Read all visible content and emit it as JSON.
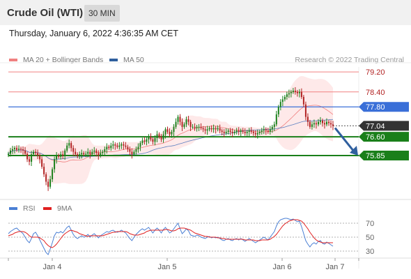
{
  "header": {
    "title": "Crude Oil (WTI)",
    "timeframe": "30 MIN"
  },
  "datetime": "Thursday, January 6, 2022 4:36:35 AM CET",
  "legend": {
    "ma20": {
      "label": "MA 20 + Bollinger Bands",
      "color": "#f08080"
    },
    "ma50": {
      "label": "MA 50",
      "color": "#2f5f9e"
    },
    "credit": "Research © 2022 Trading Central",
    "rsi": {
      "label": "RSI",
      "color": "#4a7fd4"
    },
    "ma9": {
      "label": "9MA",
      "color": "#e02020"
    }
  },
  "colors": {
    "up": "#1a7f1a",
    "down": "#b22222",
    "support": "#1a7f1a",
    "resistance": "#f08080",
    "pivot": "#3a6fd8",
    "arrow": "#2f5f9e",
    "last": "#333333"
  },
  "chart_data": {
    "type": "candlestick",
    "symbol": "Crude Oil (WTI)",
    "interval": "30 MIN",
    "ylim": [
      74.2,
      79.4
    ],
    "price_levels": [
      {
        "label": "79.20",
        "value": 79.2,
        "kind": "resistance"
      },
      {
        "label": "78.40",
        "value": 78.4,
        "kind": "resistance"
      },
      {
        "label": "77.80",
        "value": 77.8,
        "kind": "pivot"
      },
      {
        "label": "77.04",
        "value": 77.04,
        "kind": "last"
      },
      {
        "label": "76.60",
        "value": 76.6,
        "kind": "support"
      },
      {
        "label": "75.85",
        "value": 75.85,
        "kind": "support"
      }
    ],
    "x_ticks": [
      "Jan 4",
      "Jan 5",
      "Jan 6",
      "Jan 7"
    ],
    "closes": [
      75.92,
      76.05,
      76.1,
      76.15,
      76.08,
      76.12,
      76.1,
      76.05,
      75.92,
      75.7,
      75.6,
      75.9,
      76.0,
      75.95,
      75.85,
      75.7,
      75.4,
      75.1,
      74.8,
      74.6,
      74.9,
      75.3,
      75.7,
      75.85,
      75.8,
      75.9,
      75.85,
      76.05,
      76.25,
      76.35,
      76.15,
      76.0,
      75.9,
      75.85,
      75.9,
      75.95,
      75.9,
      75.92,
      76.0,
      75.9,
      76.0,
      76.05,
      75.95,
      75.85,
      75.95,
      76.0,
      76.1,
      76.2,
      76.15,
      76.25,
      76.3,
      76.25,
      76.2,
      76.25,
      76.3,
      76.25,
      76.2,
      76.1,
      76.0,
      75.9,
      76.0,
      76.1,
      76.2,
      76.35,
      76.45,
      76.4,
      76.5,
      76.6,
      76.5,
      76.4,
      76.55,
      76.7,
      76.6,
      76.5,
      76.7,
      76.9,
      76.8,
      76.7,
      76.8,
      77.0,
      77.2,
      77.4,
      77.2,
      77.0,
      77.1,
      77.3,
      77.2,
      77.0,
      77.0,
      76.95,
      77.0,
      77.0,
      76.95,
      76.9,
      76.85,
      76.9,
      76.95,
      76.9,
      76.95,
      76.9,
      76.95,
      76.85,
      76.8,
      76.75,
      76.8,
      76.85,
      76.8,
      76.75,
      76.8,
      76.85,
      76.8,
      76.85,
      76.8,
      76.75,
      76.8,
      76.85,
      76.8,
      76.75,
      76.7,
      76.75,
      76.8,
      76.85,
      76.9,
      76.85,
      76.8,
      76.9,
      77.0,
      77.1,
      77.5,
      77.8,
      78.0,
      78.1,
      78.2,
      78.3,
      78.35,
      78.4,
      78.45,
      78.4,
      78.35,
      78.4,
      78.2,
      77.9,
      77.4,
      77.2,
      77.0,
      77.1,
      77.15,
      77.1,
      77.2,
      77.25,
      77.15,
      77.1,
      77.2,
      77.15,
      77.1,
      77.04
    ]
  },
  "rsi_data": {
    "ylim": [
      20,
      80
    ],
    "levels": [
      {
        "label": "70",
        "value": 70
      },
      {
        "label": "50",
        "value": 50
      },
      {
        "label": "30",
        "value": 30
      }
    ],
    "rsi": [
      55,
      58,
      60,
      62,
      63,
      60,
      58,
      55,
      50,
      45,
      42,
      48,
      55,
      57,
      52,
      46,
      40,
      34,
      28,
      25,
      33,
      42,
      52,
      57,
      56,
      58,
      56,
      60,
      64,
      66,
      60,
      54,
      50,
      48,
      50,
      52,
      50,
      51,
      54,
      50,
      53,
      55,
      52,
      49,
      52,
      54,
      56,
      58,
      57,
      59,
      60,
      58,
      57,
      58,
      60,
      58,
      56,
      52,
      48,
      45,
      50,
      54,
      57,
      60,
      62,
      60,
      62,
      64,
      60,
      56,
      60,
      63,
      60,
      56,
      61,
      64,
      60,
      56,
      58,
      62,
      66,
      70,
      62,
      55,
      58,
      62,
      59,
      53,
      52,
      51,
      53,
      52,
      50,
      49,
      48,
      50,
      51,
      49,
      50,
      49,
      50,
      48,
      46,
      45,
      47,
      48,
      46,
      45,
      47,
      48,
      46,
      48,
      46,
      44,
      46,
      48,
      46,
      44,
      42,
      44,
      46,
      48,
      50,
      48,
      46,
      50,
      54,
      58,
      66,
      72,
      75,
      76,
      77,
      77,
      76,
      75,
      76,
      74,
      72,
      73,
      65,
      55,
      45,
      40,
      36,
      40,
      42,
      40,
      44,
      45,
      41,
      40,
      43,
      41,
      39,
      37
    ],
    "ma9": [
      52,
      53,
      54,
      56,
      57,
      58,
      58,
      58,
      57,
      55,
      52,
      50,
      50,
      50,
      50,
      49,
      47,
      45,
      41,
      38,
      36,
      35,
      37,
      40,
      44,
      48,
      52,
      55,
      57,
      59,
      60,
      59,
      58,
      57,
      55,
      54,
      53,
      52,
      51,
      52,
      52,
      52,
      52,
      52,
      52,
      52,
      53,
      54,
      55,
      56,
      57,
      57,
      58,
      58,
      58,
      58,
      58,
      57,
      55,
      54,
      53,
      53,
      53,
      54,
      55,
      56,
      58,
      59,
      60,
      60,
      60,
      60,
      60,
      60,
      60,
      61,
      61,
      60,
      59,
      59,
      60,
      62,
      63,
      63,
      63,
      62,
      61,
      60,
      58,
      56,
      55,
      54,
      53,
      52,
      51,
      51,
      50,
      50,
      50,
      50,
      49,
      49,
      48,
      48,
      47,
      47,
      47,
      47,
      47,
      47,
      47,
      47,
      47,
      46,
      46,
      46,
      46,
      46,
      45,
      45,
      45,
      46,
      46,
      46,
      46,
      47,
      49,
      51,
      54,
      58,
      62,
      66,
      69,
      71,
      73,
      74,
      75,
      75,
      75,
      74,
      73,
      70,
      66,
      62,
      57,
      53,
      49,
      46,
      44,
      43,
      42,
      42,
      42,
      42,
      42,
      42
    ]
  }
}
